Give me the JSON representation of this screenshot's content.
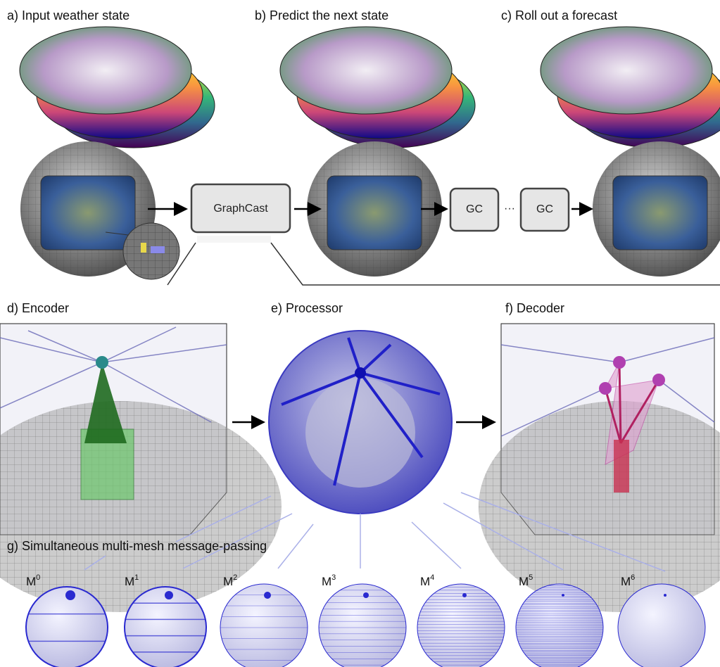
{
  "panels": {
    "a": "a)  Input weather state",
    "b": "b)  Predict the next state",
    "c": "c)  Roll out a forecast",
    "d": "d)  Encoder",
    "e": "e)  Processor",
    "f": "f)  Decoder",
    "g": "g)  Simultaneous multi-mesh message-passing"
  },
  "boxes": {
    "graphcast": "GraphCast",
    "gc1": "GC",
    "gc2": "GC",
    "ellipsis": "···"
  },
  "meshes": [
    {
      "base": "M",
      "sup": "0"
    },
    {
      "base": "M",
      "sup": "1"
    },
    {
      "base": "M",
      "sup": "2"
    },
    {
      "base": "M",
      "sup": "3"
    },
    {
      "base": "M",
      "sup": "4"
    },
    {
      "base": "M",
      "sup": "5"
    },
    {
      "base": "M",
      "sup": "6"
    }
  ],
  "colors": {
    "mesh_blue": "#2a2ad0",
    "encoder_green": "#3a9a3a",
    "decoder_magenta": "#c0409a"
  }
}
